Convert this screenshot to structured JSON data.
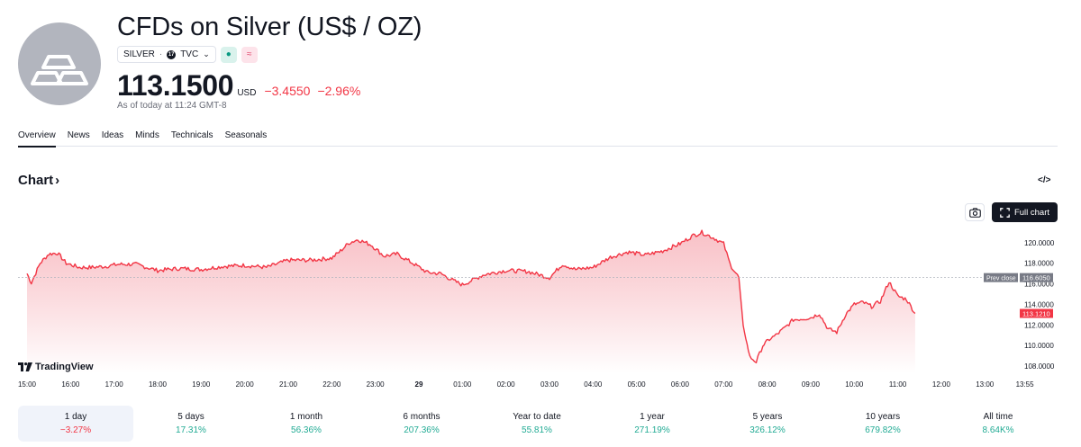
{
  "header": {
    "title": "CFDs on Silver (US$ / OZ)",
    "symbol": "SILVER",
    "separator": "·",
    "exchange": "TVC",
    "exchange_icon_text": "17",
    "badge_green": "●",
    "badge_pink": "≈",
    "price": "113.1500",
    "currency": "USD",
    "change": "−3.4550",
    "change_pct": "−2.96%",
    "as_of": "As of today at 11:24 GMT-8",
    "logo_icon": "silver-bars-icon"
  },
  "tabs": [
    {
      "label": "Overview",
      "active": true
    },
    {
      "label": "News",
      "active": false
    },
    {
      "label": "Ideas",
      "active": false
    },
    {
      "label": "Minds",
      "active": false
    },
    {
      "label": "Technicals",
      "active": false
    },
    {
      "label": "Seasonals",
      "active": false
    }
  ],
  "chart_section": {
    "heading": "Chart",
    "heading_chevron": "›",
    "embed_icon": "</>",
    "full_chart_label": "Full chart",
    "brand": "TradingView"
  },
  "chart_data": {
    "type": "area",
    "title": "",
    "prev_close_label": "Prev close",
    "prev_close": 116.605,
    "last_value": 113.121,
    "last_value_label": "113.1210",
    "prev_close_value_label": "116.6050",
    "ylim": [
      107.3,
      121.3
    ],
    "y_ticks": [
      "108.0000",
      "110.0000",
      "112.0000",
      "114.0000",
      "116.0000",
      "118.0000",
      "120.0000"
    ],
    "y_tick_values": [
      108,
      110,
      112,
      114,
      116,
      118,
      120
    ],
    "x_ticks": [
      "15:00",
      "16:00",
      "17:00",
      "18:00",
      "19:00",
      "20:00",
      "21:00",
      "22:00",
      "23:00",
      "29",
      "01:00",
      "02:00",
      "03:00",
      "04:00",
      "05:00",
      "06:00",
      "07:00",
      "08:00",
      "09:00",
      "10:00",
      "11:00",
      "12:00",
      "13:00",
      "13:55"
    ],
    "x_hours": [
      0,
      1,
      2,
      3,
      4,
      5,
      6,
      7,
      8,
      9,
      10,
      11,
      12,
      13,
      14,
      15,
      16,
      17,
      18,
      19,
      20,
      21,
      22,
      22.917
    ],
    "x_unit": "hours since 15:00",
    "series": [
      {
        "name": "",
        "x": [
          0,
          0.1,
          0.3,
          0.5,
          0.7,
          0.9,
          1.2,
          1.5,
          1.8,
          2.1,
          2.5,
          3.0,
          3.5,
          4.0,
          4.5,
          5.0,
          5.5,
          6.0,
          6.5,
          7.0,
          7.2,
          7.4,
          7.6,
          7.9,
          8.2,
          8.5,
          8.9,
          9.2,
          9.5,
          9.8,
          10.0,
          10.5,
          11.0,
          11.5,
          12.0,
          12.3,
          12.6,
          13.0,
          13.4,
          13.8,
          14.2,
          14.6,
          15.0,
          15.3,
          15.5,
          15.8,
          16.0,
          16.15,
          16.35,
          16.45,
          16.6,
          16.75,
          16.9,
          17.05,
          17.2,
          17.4,
          17.6,
          17.8,
          18.0,
          18.2,
          18.4,
          18.6,
          18.8,
          19.0,
          19.2,
          19.4,
          19.6,
          19.8,
          20.0,
          20.2,
          20.4
        ],
        "y": [
          117.0,
          116.1,
          118.0,
          118.9,
          119.0,
          118.0,
          117.6,
          117.6,
          117.7,
          117.9,
          117.9,
          117.3,
          117.5,
          117.4,
          117.7,
          117.8,
          117.6,
          118.3,
          118.3,
          118.5,
          119.2,
          120.0,
          120.3,
          119.8,
          118.7,
          118.9,
          117.9,
          117.1,
          117.0,
          116.3,
          115.9,
          116.9,
          117.3,
          117.2,
          116.6,
          117.9,
          117.4,
          117.6,
          118.6,
          119.1,
          118.8,
          119.2,
          119.9,
          120.7,
          121.0,
          120.4,
          119.9,
          117.9,
          116.6,
          111.9,
          108.9,
          108.4,
          110.0,
          110.6,
          111.0,
          111.7,
          112.5,
          112.6,
          112.7,
          113.1,
          111.6,
          111.3,
          113.0,
          114.0,
          114.2,
          113.8,
          114.3,
          116.2,
          114.8,
          114.5,
          113.121
        ]
      }
    ],
    "colors": {
      "line": "#f23645",
      "fill_top": "#f7b6bd",
      "fill_bottom": "#ffffff",
      "prev_close_line": "#b2b5be"
    },
    "legend": "none",
    "grid": false
  },
  "periods": [
    {
      "label": "1 day",
      "value": "−3.27%",
      "direction": "neg",
      "active": true
    },
    {
      "label": "5 days",
      "value": "17.31%",
      "direction": "pos",
      "active": false
    },
    {
      "label": "1 month",
      "value": "56.36%",
      "direction": "pos",
      "active": false
    },
    {
      "label": "6 months",
      "value": "207.36%",
      "direction": "pos",
      "active": false
    },
    {
      "label": "Year to date",
      "value": "55.81%",
      "direction": "pos",
      "active": false
    },
    {
      "label": "1 year",
      "value": "271.19%",
      "direction": "pos",
      "active": false
    },
    {
      "label": "5 years",
      "value": "326.12%",
      "direction": "pos",
      "active": false
    },
    {
      "label": "10 years",
      "value": "679.82%",
      "direction": "pos",
      "active": false
    },
    {
      "label": "All time",
      "value": "8.64K%",
      "direction": "pos",
      "active": false
    }
  ]
}
